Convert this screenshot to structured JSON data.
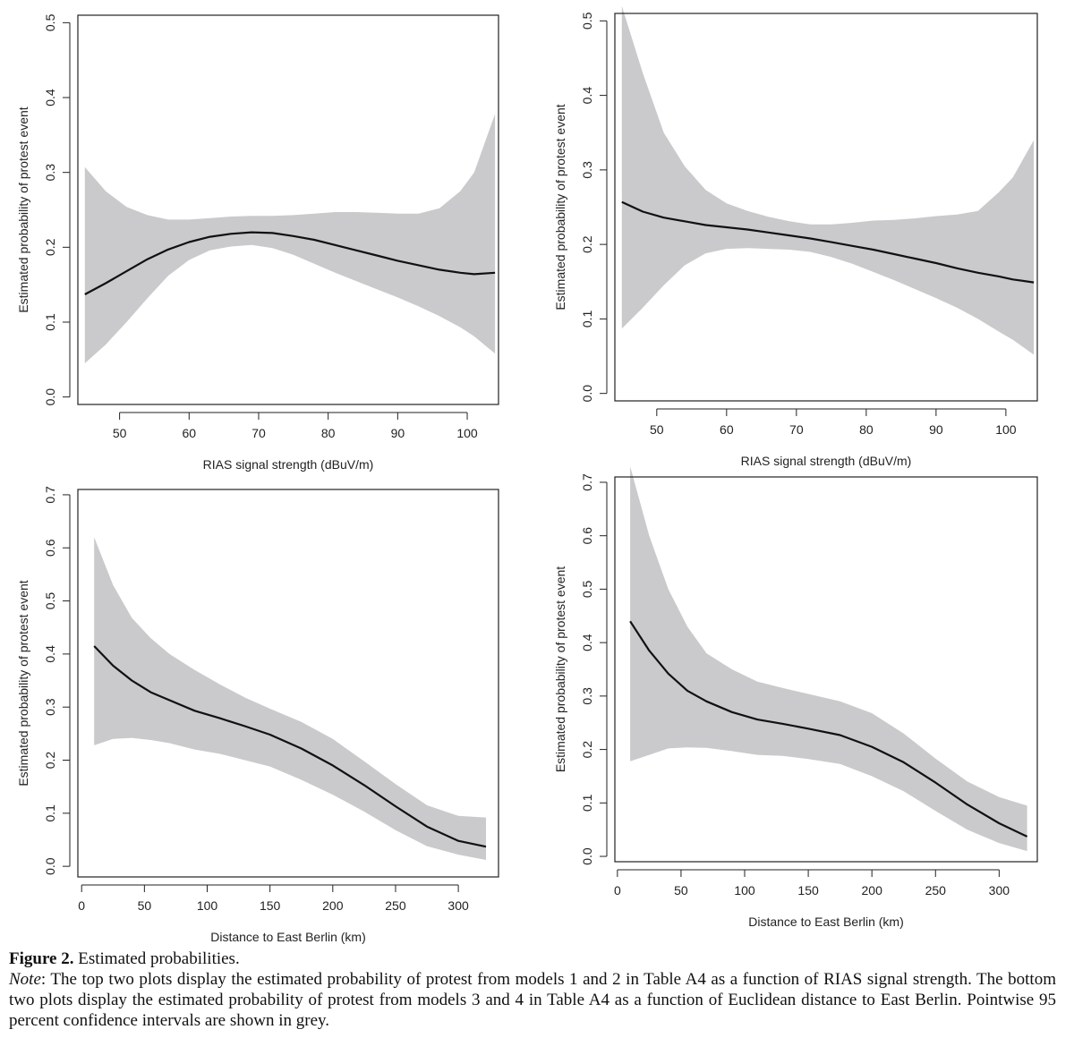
{
  "chart_data": [
    {
      "type": "line",
      "xlabel": "RIAS signal strength (dBuV/m)",
      "ylabel": "Estimated probability of protest event",
      "xlim": [
        44,
        104.5
      ],
      "ylim": [
        -0.01,
        0.51
      ],
      "xticks": [
        50,
        60,
        70,
        80,
        90,
        100
      ],
      "xtick_labels": [
        "50",
        "60",
        "70",
        "80",
        "90",
        "100"
      ],
      "yticks": [
        0.0,
        0.1,
        0.2,
        0.3,
        0.4,
        0.5
      ],
      "ytick_labels": [
        "0.0",
        "0.1",
        "0.2",
        "0.3",
        "0.4",
        "0.5"
      ],
      "grid": false,
      "band_color": "#cacacc",
      "line_color": "#111111",
      "x": [
        45,
        48,
        51,
        54,
        57,
        60,
        63,
        66,
        69,
        72,
        75,
        78,
        81,
        84,
        87,
        90,
        93,
        96,
        99,
        101,
        104
      ],
      "estimate": [
        0.137,
        0.152,
        0.168,
        0.184,
        0.197,
        0.207,
        0.214,
        0.218,
        0.22,
        0.219,
        0.215,
        0.21,
        0.203,
        0.196,
        0.189,
        0.182,
        0.176,
        0.17,
        0.166,
        0.164,
        0.166
      ],
      "ci_lower": [
        0.045,
        0.07,
        0.1,
        0.132,
        0.162,
        0.183,
        0.196,
        0.201,
        0.203,
        0.199,
        0.19,
        0.178,
        0.166,
        0.155,
        0.144,
        0.133,
        0.121,
        0.108,
        0.093,
        0.081,
        0.058
      ],
      "ci_upper": [
        0.307,
        0.275,
        0.254,
        0.243,
        0.237,
        0.237,
        0.239,
        0.241,
        0.242,
        0.242,
        0.243,
        0.245,
        0.247,
        0.247,
        0.246,
        0.245,
        0.245,
        0.252,
        0.275,
        0.3,
        0.378
      ]
    },
    {
      "type": "line",
      "xlabel": "RIAS signal strength (dBuV/m)",
      "ylabel": "Estimated probability of protest event",
      "xlim": [
        44,
        104.5
      ],
      "ylim": [
        -0.01,
        0.51
      ],
      "xticks": [
        50,
        60,
        70,
        80,
        90,
        100
      ],
      "xtick_labels": [
        "50",
        "60",
        "70",
        "80",
        "90",
        "100"
      ],
      "yticks": [
        0.0,
        0.1,
        0.2,
        0.3,
        0.4,
        0.5
      ],
      "ytick_labels": [
        "0.0",
        "0.1",
        "0.2",
        "0.3",
        "0.4",
        "0.5"
      ],
      "grid": false,
      "band_color": "#cacacc",
      "line_color": "#111111",
      "x": [
        45,
        48,
        51,
        54,
        57,
        60,
        63,
        66,
        69,
        72,
        75,
        78,
        81,
        84,
        87,
        90,
        93,
        96,
        99,
        101,
        104
      ],
      "estimate": [
        0.257,
        0.244,
        0.236,
        0.231,
        0.226,
        0.223,
        0.22,
        0.216,
        0.212,
        0.208,
        0.203,
        0.198,
        0.193,
        0.187,
        0.181,
        0.175,
        0.168,
        0.162,
        0.157,
        0.153,
        0.149
      ],
      "ci_lower": [
        0.087,
        0.115,
        0.145,
        0.172,
        0.188,
        0.194,
        0.195,
        0.194,
        0.193,
        0.19,
        0.183,
        0.174,
        0.163,
        0.152,
        0.14,
        0.128,
        0.115,
        0.1,
        0.083,
        0.072,
        0.052
      ],
      "ci_upper": [
        0.52,
        0.43,
        0.35,
        0.305,
        0.273,
        0.255,
        0.245,
        0.237,
        0.231,
        0.227,
        0.227,
        0.229,
        0.232,
        0.233,
        0.235,
        0.238,
        0.24,
        0.245,
        0.27,
        0.29,
        0.34
      ]
    },
    {
      "type": "line",
      "xlabel": "Distance to East Berlin (km)",
      "ylabel": "Estimated probability of protest event",
      "xlim": [
        -3,
        332
      ],
      "ylim": [
        -0.02,
        0.71
      ],
      "xticks": [
        0,
        50,
        100,
        150,
        200,
        250,
        300
      ],
      "xtick_labels": [
        "0",
        "50",
        "100",
        "150",
        "200",
        "250",
        "300"
      ],
      "yticks": [
        0.0,
        0.1,
        0.2,
        0.3,
        0.4,
        0.5,
        0.6,
        0.7
      ],
      "ytick_labels": [
        "0.0",
        "0.1",
        "0.2",
        "0.3",
        "0.4",
        "0.5",
        "0.6",
        "0.7"
      ],
      "grid": false,
      "band_color": "#cacacc",
      "line_color": "#111111",
      "x": [
        10,
        25,
        40,
        55,
        70,
        90,
        110,
        130,
        150,
        175,
        200,
        225,
        250,
        275,
        300,
        322
      ],
      "estimate": [
        0.415,
        0.378,
        0.35,
        0.328,
        0.313,
        0.293,
        0.279,
        0.264,
        0.248,
        0.222,
        0.19,
        0.153,
        0.113,
        0.075,
        0.048,
        0.037
      ],
      "ci_lower": [
        0.228,
        0.24,
        0.242,
        0.238,
        0.232,
        0.22,
        0.212,
        0.2,
        0.188,
        0.163,
        0.135,
        0.103,
        0.068,
        0.038,
        0.022,
        0.012
      ],
      "ci_upper": [
        0.62,
        0.53,
        0.468,
        0.43,
        0.4,
        0.37,
        0.343,
        0.318,
        0.297,
        0.272,
        0.24,
        0.198,
        0.155,
        0.115,
        0.095,
        0.092
      ]
    },
    {
      "type": "line",
      "xlabel": "Distance to East Berlin (km)",
      "ylabel": "Estimated probability of protest event",
      "xlim": [
        -2,
        330
      ],
      "ylim": [
        -0.01,
        0.71
      ],
      "xticks": [
        0,
        50,
        100,
        150,
        200,
        250,
        300
      ],
      "xtick_labels": [
        "0",
        "50",
        "100",
        "150",
        "200",
        "250",
        "300"
      ],
      "yticks": [
        0.0,
        0.1,
        0.2,
        0.3,
        0.4,
        0.5,
        0.6,
        0.7
      ],
      "ytick_labels": [
        "0.0",
        "0.1",
        "0.2",
        "0.3",
        "0.4",
        "0.5",
        "0.6",
        "0.7"
      ],
      "grid": false,
      "band_color": "#cacacc",
      "line_color": "#111111",
      "x": [
        10,
        25,
        40,
        55,
        70,
        90,
        110,
        130,
        150,
        175,
        200,
        225,
        250,
        275,
        300,
        322
      ],
      "estimate": [
        0.44,
        0.385,
        0.342,
        0.31,
        0.29,
        0.27,
        0.256,
        0.248,
        0.239,
        0.227,
        0.205,
        0.176,
        0.138,
        0.097,
        0.062,
        0.037
      ],
      "ci_lower": [
        0.178,
        0.19,
        0.202,
        0.204,
        0.203,
        0.197,
        0.19,
        0.188,
        0.182,
        0.173,
        0.15,
        0.122,
        0.085,
        0.05,
        0.025,
        0.01
      ],
      "ci_upper": [
        0.73,
        0.6,
        0.5,
        0.43,
        0.38,
        0.35,
        0.327,
        0.315,
        0.304,
        0.29,
        0.268,
        0.23,
        0.183,
        0.14,
        0.111,
        0.095
      ]
    }
  ],
  "caption": {
    "fig_label": "Figure 2.",
    "fig_title": " Estimated probabilities.",
    "note_label": "Note",
    "note_text": ": The top two plots display the estimated probability of protest from models 1 and 2 in Table A4 as a function of RIAS signal strength. The bottom two plots display the estimated probability of protest from models 3 and 4 in Table A4 as a function of Euclidean distance to East Berlin. Pointwise 95 percent confidence intervals are shown in grey."
  }
}
